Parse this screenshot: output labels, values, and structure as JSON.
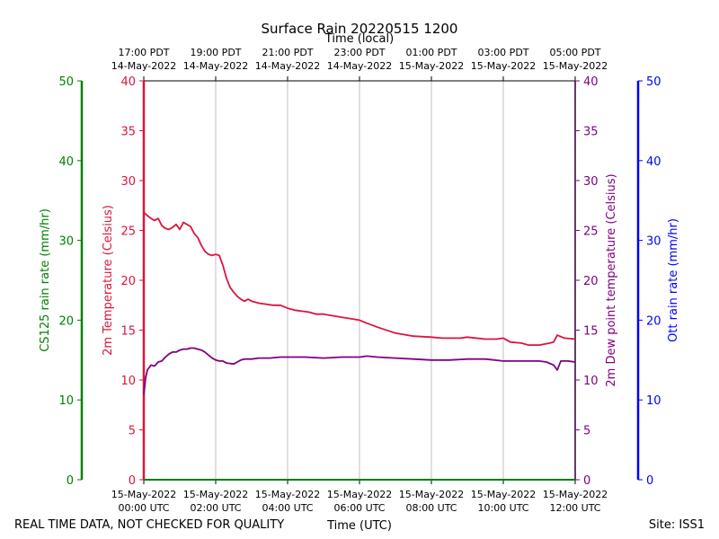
{
  "chart_data": {
    "type": "line",
    "title": "Surface Rain 20220515 1200",
    "top_axis_label": "Time (local)",
    "xlabel": "Time (UTC)",
    "footer_left": "REAL TIME DATA, NOT CHECKED FOR QUALITY",
    "footer_right": "Site: ISS1",
    "x_range_hours": [
      0,
      12
    ],
    "x_ticks": [
      {
        "hour": 0,
        "utc_date": "15-May-2022",
        "utc_time": "00:00 UTC",
        "local_time": "17:00 PDT",
        "local_date": "14-May-2022"
      },
      {
        "hour": 2,
        "utc_date": "15-May-2022",
        "utc_time": "02:00 UTC",
        "local_time": "19:00 PDT",
        "local_date": "14-May-2022"
      },
      {
        "hour": 4,
        "utc_date": "15-May-2022",
        "utc_time": "04:00 UTC",
        "local_time": "21:00 PDT",
        "local_date": "14-May-2022"
      },
      {
        "hour": 6,
        "utc_date": "15-May-2022",
        "utc_time": "06:00 UTC",
        "local_time": "23:00 PDT",
        "local_date": "14-May-2022"
      },
      {
        "hour": 8,
        "utc_date": "15-May-2022",
        "utc_time": "08:00 UTC",
        "local_time": "01:00 PDT",
        "local_date": "15-May-2022"
      },
      {
        "hour": 10,
        "utc_date": "15-May-2022",
        "utc_time": "10:00 UTC",
        "local_time": "03:00 PDT",
        "local_date": "15-May-2022"
      },
      {
        "hour": 12,
        "utc_date": "15-May-2022",
        "utc_time": "12:00 UTC",
        "local_time": "05:00 PDT",
        "local_date": "15-May-2022"
      }
    ],
    "axes": {
      "cs125": {
        "label": "CS125 rain rate (mm/hr)",
        "ylim": [
          0,
          50
        ],
        "ticks": [
          0,
          10,
          20,
          30,
          40,
          50
        ],
        "color": "#008000"
      },
      "temperature": {
        "label": "2m Temperature (Celsius)",
        "ylim": [
          0,
          40
        ],
        "ticks": [
          0,
          5,
          10,
          15,
          20,
          25,
          30,
          35,
          40
        ],
        "color": "#dc143c"
      },
      "dewpoint": {
        "label": "2m Dew point temperature (Celsius)",
        "ylim": [
          0,
          40
        ],
        "ticks": [
          0,
          5,
          10,
          15,
          20,
          25,
          30,
          35,
          40
        ],
        "color": "#800080"
      },
      "ott": {
        "label": "Ott rain rate (mm/hr)",
        "ylim": [
          0,
          50
        ],
        "ticks": [
          0,
          10,
          20,
          30,
          40,
          50
        ],
        "color": "#0000ff"
      }
    },
    "series": [
      {
        "name": "2m Temperature",
        "color": "#dc143c",
        "x": [
          0,
          0.1,
          0.2,
          0.3,
          0.4,
          0.5,
          0.6,
          0.7,
          0.8,
          0.9,
          1.0,
          1.1,
          1.2,
          1.3,
          1.4,
          1.5,
          1.6,
          1.7,
          1.8,
          1.9,
          2.0,
          2.1,
          2.2,
          2.3,
          2.4,
          2.5,
          2.6,
          2.7,
          2.8,
          2.9,
          3.0,
          3.2,
          3.4,
          3.6,
          3.8,
          4.0,
          4.2,
          4.4,
          4.6,
          4.8,
          5.0,
          5.5,
          6.0,
          6.2,
          6.5,
          7.0,
          7.5,
          8.0,
          8.3,
          8.5,
          8.8,
          9.0,
          9.5,
          9.8,
          10.0,
          10.2,
          10.5,
          10.7,
          11.0,
          11.3,
          11.4,
          11.5,
          11.7,
          12.0
        ],
        "y": [
          26.8,
          26.5,
          26.2,
          26.0,
          26.2,
          25.5,
          25.2,
          25.1,
          25.3,
          25.6,
          25.1,
          25.8,
          25.6,
          25.4,
          24.7,
          24.3,
          23.5,
          22.9,
          22.6,
          22.5,
          22.6,
          22.5,
          21.5,
          20.2,
          19.3,
          18.8,
          18.4,
          18.1,
          17.9,
          18.1,
          17.9,
          17.7,
          17.6,
          17.5,
          17.5,
          17.2,
          17.0,
          16.9,
          16.8,
          16.6,
          16.6,
          16.3,
          16.0,
          15.7,
          15.3,
          14.7,
          14.4,
          14.3,
          14.2,
          14.2,
          14.2,
          14.3,
          14.1,
          14.1,
          14.2,
          13.8,
          13.7,
          13.5,
          13.5,
          13.7,
          13.8,
          14.5,
          14.2,
          14.1
        ]
      },
      {
        "name": "2m Dew point temperature",
        "color": "#800080",
        "x": [
          0,
          0.05,
          0.1,
          0.2,
          0.3,
          0.4,
          0.5,
          0.6,
          0.7,
          0.8,
          0.9,
          1.0,
          1.1,
          1.2,
          1.3,
          1.4,
          1.5,
          1.6,
          1.7,
          1.8,
          1.9,
          2.0,
          2.1,
          2.2,
          2.3,
          2.5,
          2.6,
          2.7,
          2.8,
          3.0,
          3.2,
          3.5,
          3.8,
          4.0,
          4.5,
          5.0,
          5.5,
          6.0,
          6.2,
          6.5,
          7.0,
          7.5,
          8.0,
          8.5,
          9.0,
          9.5,
          10.0,
          10.2,
          10.5,
          11.0,
          11.2,
          11.4,
          11.5,
          11.6,
          11.8,
          12.0
        ],
        "y": [
          8.5,
          10.2,
          11.0,
          11.5,
          11.4,
          11.8,
          11.9,
          12.3,
          12.6,
          12.8,
          12.8,
          13.0,
          13.1,
          13.1,
          13.2,
          13.2,
          13.1,
          13.0,
          12.8,
          12.5,
          12.2,
          12.0,
          11.9,
          11.9,
          11.7,
          11.6,
          11.8,
          12.0,
          12.1,
          12.1,
          12.2,
          12.2,
          12.3,
          12.3,
          12.3,
          12.2,
          12.3,
          12.3,
          12.4,
          12.3,
          12.2,
          12.1,
          12.0,
          12.0,
          12.1,
          12.1,
          11.9,
          11.9,
          11.9,
          11.9,
          11.8,
          11.5,
          11.0,
          11.9,
          11.9,
          11.8
        ]
      }
    ]
  }
}
